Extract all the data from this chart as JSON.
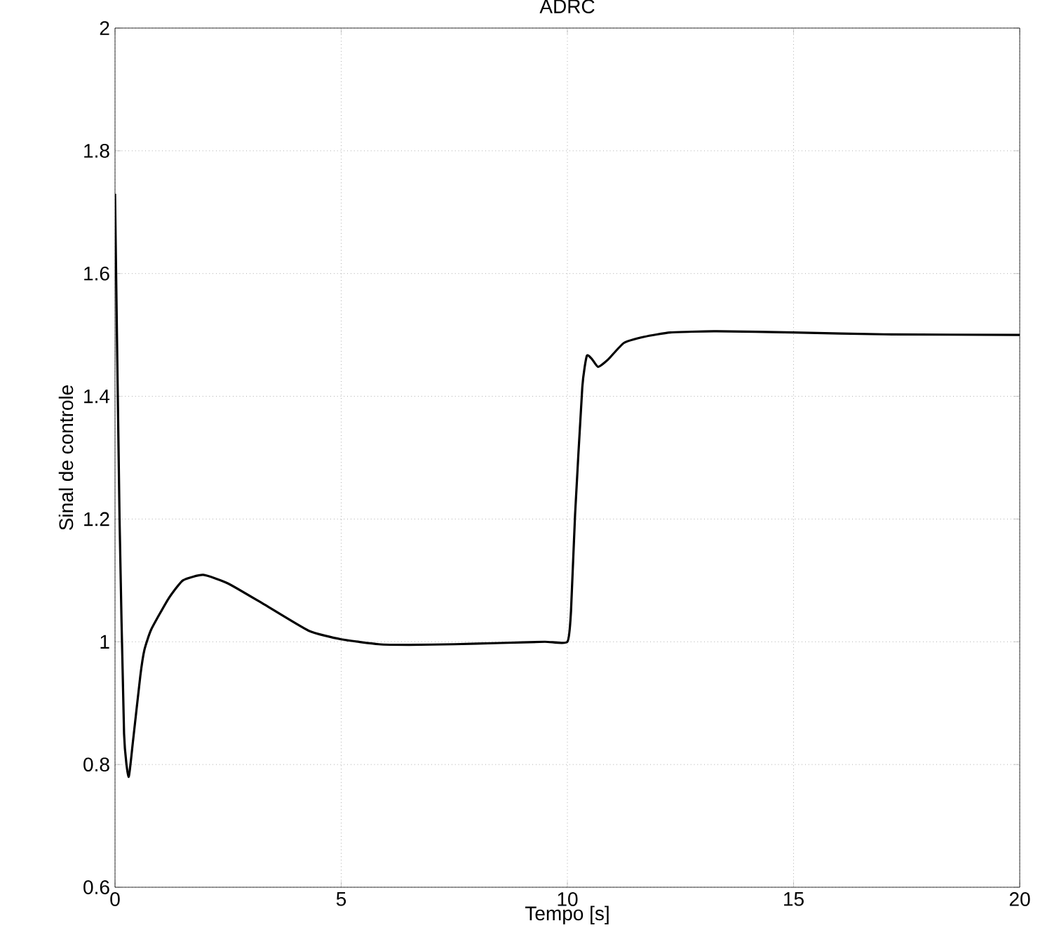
{
  "chart_data": {
    "type": "line",
    "title": "ADRC",
    "xlabel": "Tempo [s]",
    "ylabel": "Sinal de controle",
    "xlim": [
      0,
      20
    ],
    "ylim": [
      0.6,
      2
    ],
    "xticks": [
      0,
      5,
      10,
      15,
      20
    ],
    "yticks": [
      0.6,
      0.8,
      1,
      1.2,
      1.4,
      1.6,
      1.8,
      2
    ],
    "grid": true,
    "series": [
      {
        "color": "#000000",
        "x": [
          0,
          0.1,
          0.2,
          0.3,
          0.4,
          0.56,
          0.65,
          0.8,
          1.18,
          1.5,
          1.95,
          2.5,
          3.25,
          4.28,
          5.0,
          5.83,
          6.5,
          7.5,
          8.5,
          9.5,
          10.0,
          10.08,
          10.17,
          10.33,
          10.43,
          10.55,
          10.68,
          10.9,
          11.25,
          11.7,
          12.28,
          13.3,
          15,
          17,
          20
        ],
        "values": [
          1.73,
          1.2,
          0.85,
          0.78,
          0.84,
          0.945,
          0.987,
          1.02,
          1.07,
          1.1,
          1.109,
          1.095,
          1.063,
          1.018,
          1.004,
          0.996,
          0.995,
          0.996,
          0.998,
          1.0,
          1.0,
          1.05,
          1.207,
          1.415,
          1.466,
          1.46,
          1.448,
          1.46,
          1.487,
          1.497,
          1.504,
          1.506,
          1.504,
          1.501,
          1.5
        ]
      }
    ]
  }
}
